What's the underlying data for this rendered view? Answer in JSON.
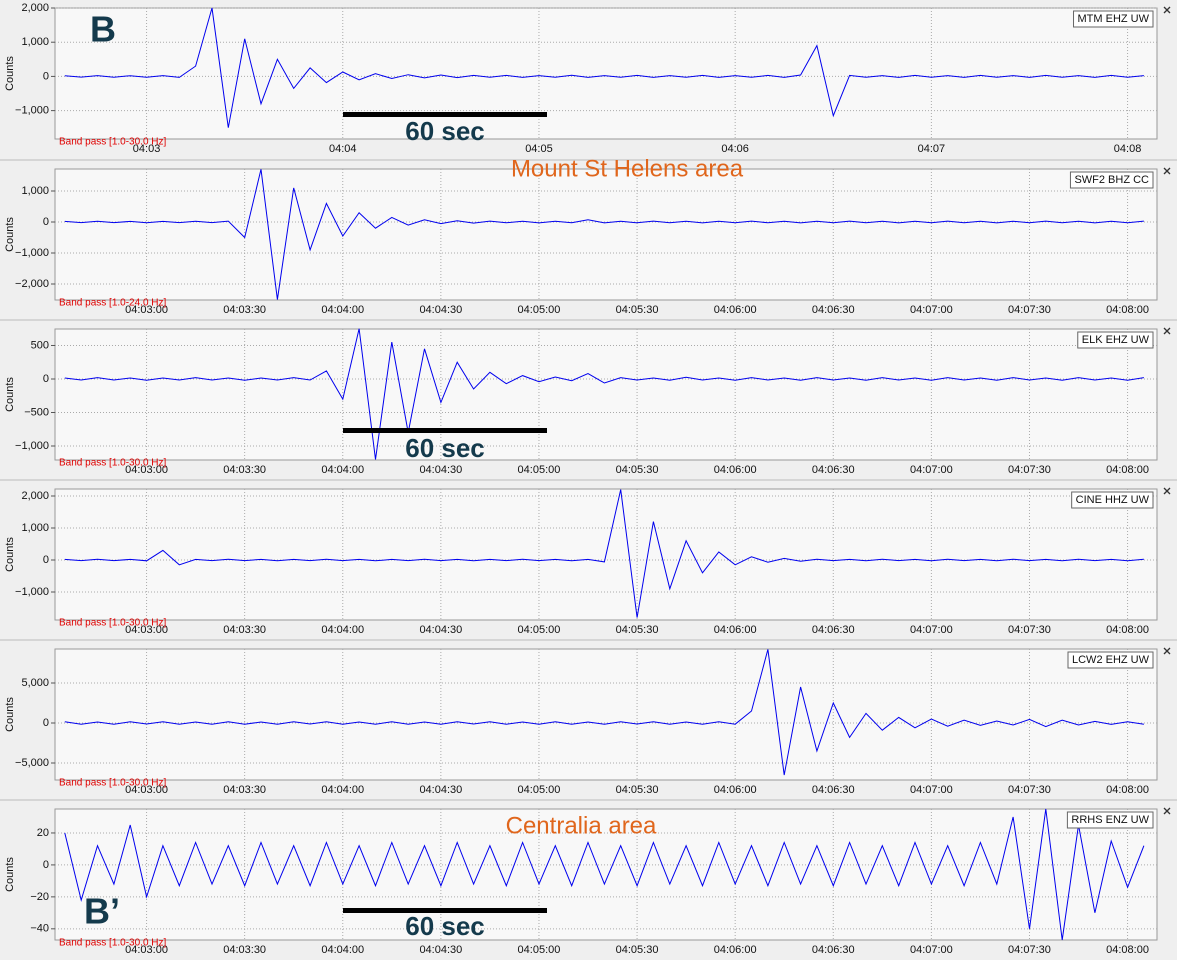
{
  "chart_data": {
    "type": "line",
    "x": [
      155,
      160,
      165,
      170,
      175,
      180,
      185,
      190,
      195,
      200,
      205,
      210,
      215,
      220,
      225,
      230,
      235,
      240,
      245,
      250,
      255,
      260,
      265,
      270,
      275,
      280,
      285,
      290,
      295,
      300,
      305,
      310,
      315,
      320,
      325,
      330,
      335,
      340,
      345,
      350,
      355,
      360,
      365,
      370,
      375,
      380,
      385,
      390,
      395,
      400,
      405,
      410,
      415,
      420,
      425,
      430,
      435,
      440,
      445,
      450,
      455,
      460,
      465,
      470,
      475,
      480,
      485
    ],
    "xlim": [
      152,
      489
    ],
    "xticks": [
      {
        "value": 180,
        "label": "04:03:00"
      },
      {
        "value": 210,
        "label": "04:03:30"
      },
      {
        "value": 240,
        "label": "04:04:00"
      },
      {
        "value": 270,
        "label": "04:04:30"
      },
      {
        "value": 300,
        "label": "04:05:00"
      },
      {
        "value": 330,
        "label": "04:05:30"
      },
      {
        "value": 360,
        "label": "04:06:00"
      },
      {
        "value": 390,
        "label": "04:06:30"
      },
      {
        "value": 420,
        "label": "04:07:00"
      },
      {
        "value": 450,
        "label": "04:07:30"
      },
      {
        "value": 480,
        "label": "04:08:00"
      }
    ],
    "ylabel": "Counts",
    "grid": true,
    "color": "#0000ee",
    "annotations": {
      "top_letter": "B",
      "bottom_letter": "B’",
      "scale": "60 sec",
      "area_north": "Mount St Helens area",
      "area_south": "Centralia area"
    },
    "panels": [
      {
        "station": "MTM EHZ UW",
        "filter": "Band pass [1.0-30.0 Hz]",
        "ylim": [
          -1830,
          2000
        ],
        "yticks": [
          {
            "value": -1000,
            "label": "−1,000"
          },
          0,
          {
            "value": 1000,
            "label": "1,000"
          },
          {
            "value": 2000,
            "label": "2,000"
          }
        ],
        "xticks": [
          {
            "value": 180,
            "label": "04:03"
          },
          {
            "value": 240,
            "label": "04:04"
          },
          {
            "value": 300,
            "label": "04:05"
          },
          {
            "value": 360,
            "label": "04:06"
          },
          {
            "value": 420,
            "label": "04:07"
          },
          {
            "value": 480,
            "label": "04:08"
          }
        ],
        "values": [
          20,
          -20,
          25,
          -25,
          20,
          -25,
          25,
          -30,
          300,
          2000,
          -1500,
          1100,
          -800,
          500,
          -350,
          250,
          -180,
          130,
          -100,
          80,
          -60,
          50,
          -45,
          40,
          -35,
          30,
          -25,
          30,
          -30,
          25,
          -25,
          35,
          -30,
          25,
          -25,
          30,
          -30,
          25,
          -25,
          30,
          -30,
          25,
          -25,
          30,
          -30,
          40,
          900,
          -1150,
          30,
          -25,
          25,
          -30,
          30,
          -25,
          25,
          -30,
          30,
          -25,
          25,
          -30,
          30,
          -25,
          25,
          -30,
          30,
          -25,
          25
        ]
      },
      {
        "station": "SWF2 BHZ CC",
        "filter": "Band pass [1.0-24.0 Hz]",
        "ylim": [
          -2516,
          1710
        ],
        "yticks": [
          {
            "value": -2000,
            "label": "−2,000"
          },
          {
            "value": -1000,
            "label": "−1,000"
          },
          0,
          {
            "value": 1000,
            "label": "1,000"
          }
        ],
        "values": [
          20,
          -20,
          25,
          -20,
          20,
          -25,
          20,
          -20,
          25,
          -20,
          30,
          -500,
          1700,
          -2500,
          1100,
          -900,
          600,
          -450,
          300,
          -200,
          150,
          -100,
          70,
          -50,
          40,
          -35,
          30,
          -25,
          25,
          -30,
          25,
          -25,
          70,
          -30,
          25,
          -25,
          30,
          -25,
          25,
          -30,
          25,
          -25,
          30,
          -25,
          25,
          -30,
          25,
          -25,
          30,
          -25,
          25,
          -30,
          25,
          -25,
          30,
          -25,
          25,
          -30,
          25,
          -25,
          30,
          -25,
          25,
          -30,
          25,
          -25,
          30
        ]
      },
      {
        "station": "ELK EHZ UW",
        "filter": "Band pass [1.0-30.0 Hz]",
        "ylim": [
          -1209,
          746
        ],
        "yticks": [
          {
            "value": -1000,
            "label": "−1,000"
          },
          {
            "value": -500,
            "label": "−500"
          },
          0,
          500
        ],
        "values": [
          15,
          -15,
          20,
          -15,
          15,
          -20,
          15,
          -15,
          20,
          -15,
          15,
          -20,
          15,
          -15,
          20,
          -15,
          120,
          -300,
          750,
          -1200,
          550,
          -800,
          450,
          -350,
          250,
          -150,
          100,
          -70,
          50,
          -40,
          30,
          -25,
          80,
          -60,
          20,
          -15,
          15,
          -20,
          25,
          -15,
          15,
          -20,
          20,
          -15,
          15,
          -20,
          20,
          -15,
          15,
          -20,
          20,
          -15,
          15,
          -20,
          20,
          -15,
          15,
          -20,
          20,
          -15,
          15,
          -20,
          20,
          -15,
          15,
          -20,
          20
        ]
      },
      {
        "station": "CINE HHZ UW",
        "filter": "Band pass [1.0-30.0 Hz]",
        "ylim": [
          -1875,
          2219
        ],
        "yticks": [
          {
            "value": -1000,
            "label": "−1,000"
          },
          0,
          {
            "value": 1000,
            "label": "1,000"
          },
          {
            "value": 2000,
            "label": "2,000"
          }
        ],
        "values": [
          20,
          -20,
          25,
          -20,
          20,
          -25,
          300,
          -150,
          20,
          -20,
          25,
          -20,
          20,
          -25,
          20,
          -20,
          25,
          -20,
          20,
          -25,
          20,
          -20,
          25,
          -20,
          20,
          -25,
          20,
          -20,
          25,
          -20,
          20,
          -25,
          20,
          -60,
          2200,
          -1800,
          1200,
          -900,
          600,
          -400,
          250,
          -150,
          100,
          -70,
          50,
          -40,
          25,
          -20,
          20,
          -25,
          25,
          -20,
          20,
          -25,
          25,
          -20,
          20,
          -25,
          25,
          -20,
          20,
          -25,
          25,
          -20,
          20,
          -25,
          25
        ]
      },
      {
        "station": "LCW2 EHZ UW",
        "filter": "Band pass [1.0-30.0 Hz]",
        "ylim": [
          -7125,
          9250
        ],
        "yticks": [
          {
            "value": -5000,
            "label": "−5,000"
          },
          0,
          {
            "value": 5000,
            "label": "5,000"
          }
        ],
        "values": [
          150,
          -150,
          120,
          -150,
          150,
          -120,
          150,
          -150,
          120,
          -150,
          150,
          -150,
          120,
          -150,
          150,
          -120,
          150,
          -150,
          120,
          -150,
          150,
          -150,
          120,
          -150,
          150,
          -120,
          150,
          -150,
          120,
          -150,
          150,
          -150,
          120,
          -150,
          150,
          -120,
          150,
          -150,
          120,
          -150,
          150,
          -150,
          1500,
          9200,
          -6500,
          4500,
          -3500,
          2500,
          -1800,
          1200,
          -900,
          700,
          -600,
          500,
          -400,
          350,
          -300,
          250,
          -250,
          450,
          -450,
          350,
          -250,
          200,
          -180,
          150,
          -150
        ]
      },
      {
        "station": "RRHS ENZ UW",
        "filter": "Band pass [1.0-30.0 Hz]",
        "ylim": [
          -47,
          35
        ],
        "yticks": [
          {
            "value": -40,
            "label": "−40"
          },
          {
            "value": -20,
            "label": "−20"
          },
          0,
          20
        ],
        "values": [
          20,
          -22,
          12,
          -12,
          25,
          -20,
          12,
          -13,
          14,
          -12,
          12,
          -13,
          14,
          -12,
          12,
          -13,
          14,
          -12,
          12,
          -13,
          14,
          -12,
          12,
          -13,
          14,
          -12,
          12,
          -13,
          14,
          -12,
          12,
          -13,
          14,
          -12,
          12,
          -13,
          14,
          -12,
          12,
          -13,
          14,
          -12,
          12,
          -13,
          14,
          -12,
          12,
          -13,
          14,
          -12,
          12,
          -13,
          14,
          -12,
          12,
          -13,
          14,
          -12,
          30,
          -40,
          35,
          -47,
          25,
          -30,
          15,
          -14,
          12
        ]
      }
    ]
  }
}
